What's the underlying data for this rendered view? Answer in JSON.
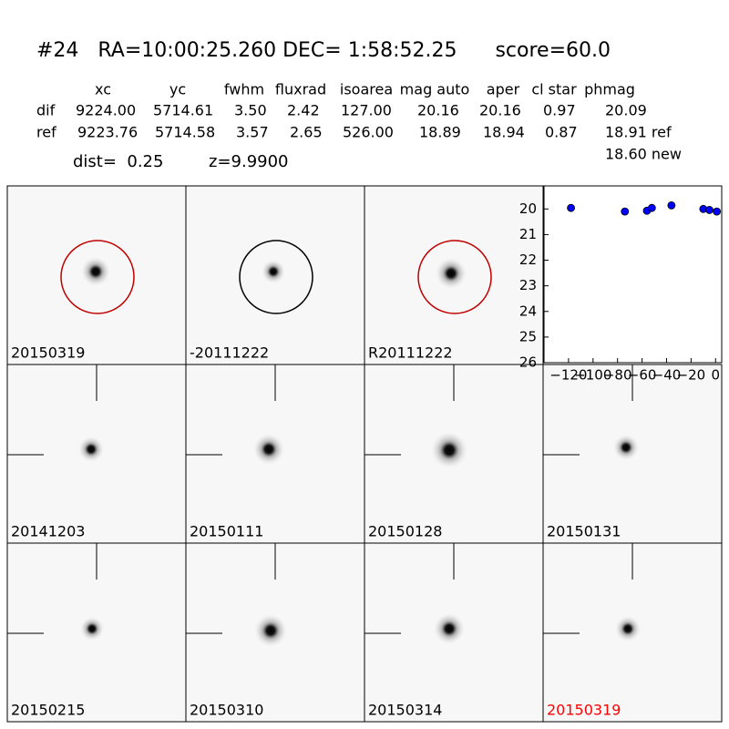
{
  "header": {
    "title": "#24   RA=10:00:25.260 DEC= 1:58:52.25      score=60.0"
  },
  "table": {
    "columns": [
      "xc",
      "yc",
      "fwhm",
      "fluxrad",
      "isoarea",
      "mag auto",
      "aper",
      "cl star",
      "phmag"
    ],
    "rows": [
      [
        "dif",
        "9224.00",
        "5714.61",
        "3.50",
        "2.42",
        "127.00",
        "20.16",
        "20.16",
        "0.97",
        "20.09"
      ],
      [
        "ref",
        "9223.76",
        "5714.58",
        "3.57",
        "2.65",
        "526.00",
        "18.89",
        "18.94",
        "0.87",
        "18.91 ref"
      ]
    ],
    "extra": "18.60 new",
    "dist": "dist=  0.25",
    "z": "z=9.9900"
  },
  "panels": [
    "20150319",
    "-20111222",
    "R20111222",
    "20141203",
    "20150111",
    "20150128",
    "20150131",
    "20150215",
    "20150310",
    "20150314",
    "20150319"
  ],
  "chart_data": {
    "type": "scatter",
    "color": "#0000ff",
    "x": [
      -118,
      -74,
      -56,
      -52,
      -36,
      -10,
      -5,
      1
    ],
    "values": [
      19.96,
      20.1,
      20.07,
      19.96,
      19.86,
      20.0,
      20.04,
      20.1
    ],
    "xlim": [
      -140,
      5
    ],
    "ylim": [
      26,
      19.1
    ],
    "xticks": [
      {
        "value": -120,
        "label": "−120"
      },
      {
        "value": -100,
        "label": "−100"
      },
      {
        "value": -80,
        "label": "−80"
      },
      {
        "value": -60,
        "label": "−60"
      },
      {
        "value": -40,
        "label": "−40"
      },
      {
        "value": -20,
        "label": "−20"
      },
      0
    ],
    "yticks": [
      20,
      21,
      22,
      23,
      24,
      25,
      26
    ]
  }
}
